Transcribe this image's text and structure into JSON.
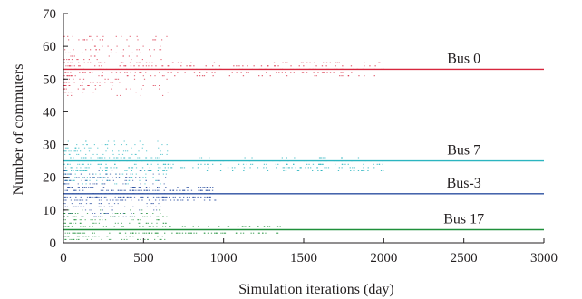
{
  "chart_data": {
    "type": "scatter",
    "title": "",
    "xlabel": "Simulation iterations (day)",
    "ylabel": "Number of commuters",
    "xlim": [
      0,
      3000
    ],
    "ylim": [
      0,
      70
    ],
    "xticks": [
      0,
      500,
      1000,
      1500,
      2000,
      2500,
      3000
    ],
    "yticks": [
      0,
      10,
      20,
      30,
      40,
      50,
      60,
      70
    ],
    "grid": false,
    "series": [
      {
        "name": "Bus 0",
        "color": "#d7263d",
        "steady_value": 53,
        "converged_from_day": 2100,
        "early_range": [
          45,
          63
        ],
        "spread_until_day": 2000,
        "scatter_band": [
          51,
          55
        ]
      },
      {
        "name": "Bus 7",
        "color": "#2bb5c0",
        "steady_value": 25,
        "converged_from_day": 2100,
        "early_range": [
          18,
          31
        ],
        "spread_until_day": 2000,
        "scatter_band": [
          22,
          26
        ]
      },
      {
        "name": "Bus-3",
        "color": "#2b4fa0",
        "steady_value": 15,
        "converged_from_day": 1000,
        "early_range": [
          8,
          22
        ],
        "spread_until_day": 950,
        "scatter_band": [
          13,
          17
        ]
      },
      {
        "name": "Bus 17",
        "color": "#1f8f3a",
        "steady_value": 4,
        "converged_from_day": 1400,
        "early_range": [
          0,
          10
        ],
        "spread_until_day": 1350,
        "scatter_band": [
          3,
          5
        ]
      }
    ]
  }
}
